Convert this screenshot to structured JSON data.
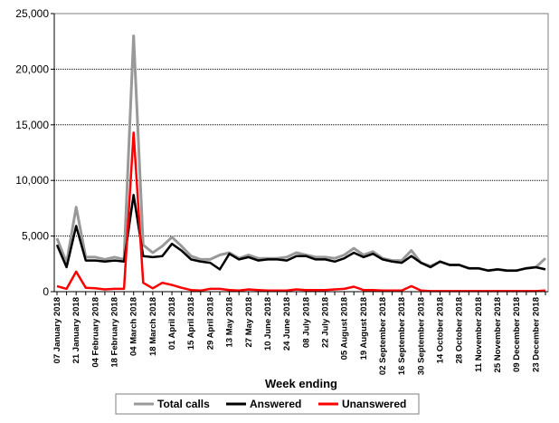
{
  "chart_data": {
    "type": "line",
    "title": "",
    "xlabel": "Week ending",
    "ylabel": "",
    "ylim": [
      0,
      25000
    ],
    "y_ticks": [
      "0",
      "5,000",
      "10,000",
      "15,000",
      "20,000",
      "25,000"
    ],
    "y_tick_values": [
      0,
      5000,
      10000,
      15000,
      20000,
      25000
    ],
    "grid": "horizontal",
    "legend_position": "bottom",
    "x_tick_labels": [
      "07 January 2018",
      "21 January 2018",
      "04 February 2018",
      "18 February 2018",
      "04 March 2018",
      "18 March 2018",
      "01 April 2018",
      "15 April 2018",
      "29 April 2018",
      "13 May 2018",
      "27 May 2018",
      "10 June 2018",
      "24 June 2018",
      "08 July 2018",
      "22 July 2018",
      "05 August 2018",
      "19 August 2018",
      "02 September 2018",
      "16 September 2018",
      "30 September 2018",
      "14 October 2018",
      "28 October 2018",
      "11 November 2018",
      "25 November 2018",
      "09 December 2018",
      "23 December 2018"
    ],
    "x_tick_every": 2,
    "series": [
      {
        "name": "Total calls",
        "color": "#999999",
        "values": [
          4800,
          2600,
          7600,
          3100,
          3100,
          2900,
          3100,
          2900,
          23000,
          4200,
          3500,
          4100,
          4900,
          4100,
          3200,
          2900,
          2900,
          3300,
          3500,
          3000,
          3300,
          3000,
          3000,
          3000,
          3100,
          3500,
          3300,
          3100,
          3100,
          3000,
          3300,
          3900,
          3300,
          3600,
          3000,
          2800,
          2800,
          3700,
          2600,
          2300,
          2700,
          2400,
          2400,
          2100,
          2100,
          1900,
          2000,
          1900,
          1900,
          2100,
          2200,
          3000
        ]
      },
      {
        "name": "Answered",
        "color": "#000000",
        "values": [
          4200,
          2200,
          5900,
          2800,
          2800,
          2700,
          2800,
          2700,
          8700,
          3200,
          3100,
          3200,
          4300,
          3700,
          2900,
          2700,
          2600,
          2000,
          3400,
          2900,
          3100,
          2800,
          2900,
          2900,
          2800,
          3200,
          3200,
          2900,
          2900,
          2700,
          3000,
          3500,
          3100,
          3400,
          2900,
          2700,
          2600,
          3200,
          2600,
          2200,
          2700,
          2400,
          2400,
          2100,
          2100,
          1900,
          2000,
          1900,
          1900,
          2100,
          2200,
          2000
        ]
      },
      {
        "name": "Unanswered",
        "color": "#ff0000",
        "values": [
          500,
          250,
          1800,
          350,
          300,
          200,
          250,
          250,
          14300,
          800,
          300,
          800,
          600,
          350,
          150,
          100,
          250,
          250,
          150,
          100,
          200,
          150,
          100,
          100,
          100,
          200,
          150,
          150,
          150,
          200,
          250,
          450,
          150,
          150,
          100,
          100,
          100,
          500,
          100,
          50,
          50,
          50,
          50,
          50,
          50,
          50,
          50,
          50,
          50,
          50,
          50,
          100
        ]
      }
    ]
  }
}
